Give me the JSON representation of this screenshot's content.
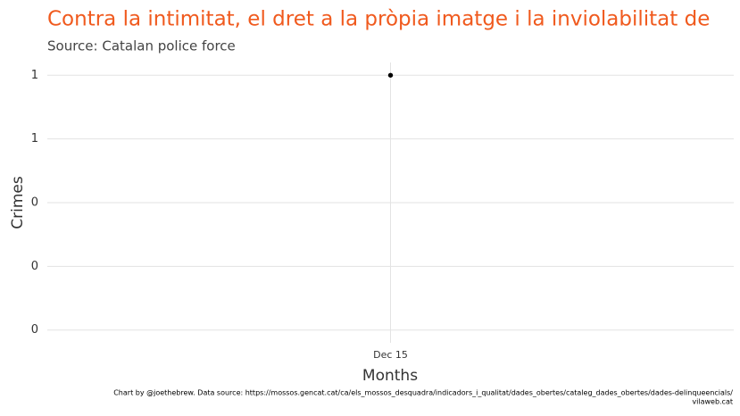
{
  "chart_data": {
    "type": "line",
    "title": "Contra la intimitat, el dret a la pròpia imatge i la inviolabilitat de",
    "subtitle": "Source: Catalan police force",
    "x_label": "Months",
    "y_label": "Crimes",
    "categories": [
      "Dec 15"
    ],
    "values": [
      1
    ],
    "color": "#000000",
    "ylim": [
      -0.05,
      1.05
    ],
    "yticks": [
      {
        "value": 0,
        "label": "0"
      },
      {
        "value": 0.25,
        "label": "0"
      },
      {
        "value": 0.5,
        "label": "0"
      },
      {
        "value": 0.75,
        "label": "1"
      },
      {
        "value": 1,
        "label": "1"
      }
    ],
    "grid": true,
    "caption": [
      "Chart by @joethebrew. Data source: https://mossos.gencat.cat/ca/els_mossos_desquadra/indicadors_i_qualitat/dades_obertes/cataleg_dades_obertes/dades-delinqueencials/",
      "vilaweb.cat"
    ]
  }
}
